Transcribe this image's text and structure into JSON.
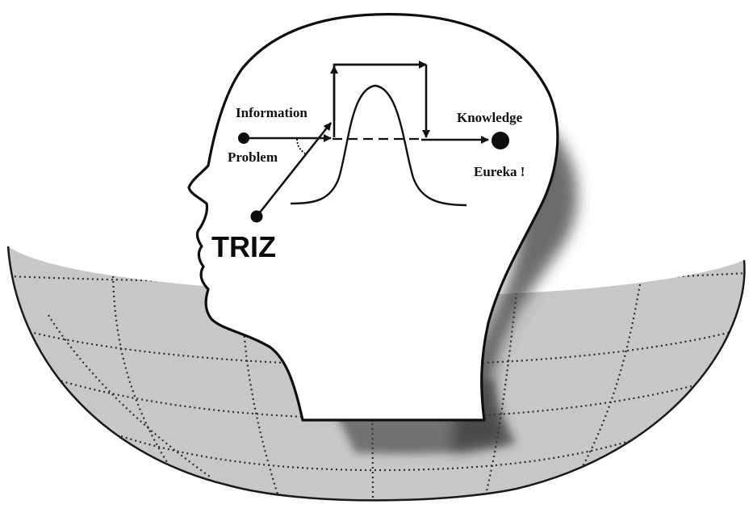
{
  "labels": {
    "information": "Information",
    "problem": "Problem",
    "knowledge": "Knowledge",
    "eureka": "Eureka !",
    "triz": "TRIZ"
  },
  "colors": {
    "ink": "#111111",
    "globe_fill": "#d2d2d2",
    "globe_grid": "#2a2a2a",
    "shadow": "#3a3a3a",
    "background": "#ffffff"
  },
  "icons": {
    "problem_point": "dot",
    "knowledge_point": "dot",
    "triz_point": "dot"
  }
}
